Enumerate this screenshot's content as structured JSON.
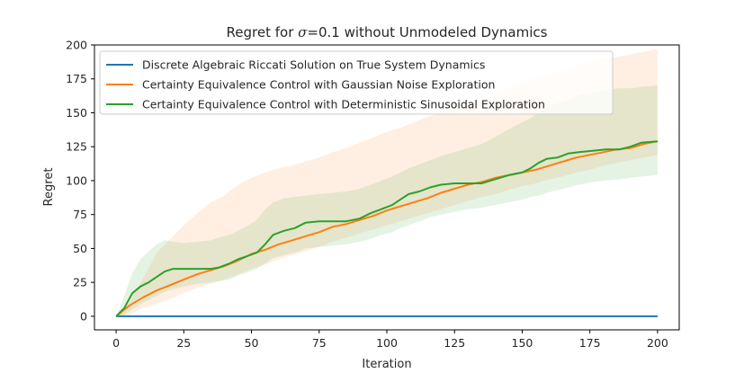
{
  "chart_data": {
    "type": "line",
    "title": "Regret for σ=0.1 without Unmodeled Dynamics",
    "title_prefix": "Regret for ",
    "title_sigma": "σ",
    "title_suffix": "=0.1 without Unmodeled Dynamics",
    "xlabel": "Iteration",
    "ylabel": "Regret",
    "xlim": [
      -8,
      208
    ],
    "ylim": [
      -10,
      200
    ],
    "xticks": [
      0,
      25,
      50,
      75,
      100,
      125,
      150,
      175,
      200
    ],
    "yticks": [
      0,
      25,
      50,
      75,
      100,
      125,
      150,
      175,
      200
    ],
    "grid": false,
    "legend_position": "top-left",
    "series": [
      {
        "name": "Discrete Algebraic Riccati Solution on True System Dynamics",
        "color": "#1f77b4",
        "x": [
          0,
          200
        ],
        "y": [
          0,
          0
        ]
      },
      {
        "name": "Certainty Equivalence Control with Gaussian Noise Exploration",
        "color": "#ff7f0e",
        "x": [
          0,
          5,
          10,
          15,
          20,
          25,
          30,
          35,
          40,
          45,
          50,
          55,
          60,
          65,
          70,
          75,
          80,
          85,
          90,
          95,
          100,
          105,
          110,
          115,
          120,
          125,
          130,
          135,
          140,
          145,
          150,
          155,
          160,
          165,
          170,
          175,
          180,
          185,
          190,
          195,
          200
        ],
        "y": [
          0,
          8,
          14,
          19,
          23,
          27,
          31,
          34,
          37,
          41,
          46,
          49,
          53,
          56,
          59,
          62,
          66,
          68,
          71,
          74,
          78,
          81,
          84,
          87,
          91,
          94,
          97,
          99,
          102,
          104,
          106,
          108,
          111,
          114,
          117,
          119,
          121,
          123,
          124,
          127,
          129
        ],
        "band_upper": [
          0,
          10,
          28,
          47,
          57,
          67,
          76,
          84,
          89,
          97,
          102,
          106,
          109,
          111,
          114,
          117,
          121,
          124,
          128,
          132,
          136,
          139,
          143,
          147,
          150,
          154,
          157,
          160,
          164,
          168,
          172,
          176,
          178,
          181,
          184,
          187,
          190,
          191,
          193,
          195,
          197
        ],
        "band_lower": [
          0,
          1,
          6,
          9,
          13,
          17,
          21,
          24,
          27,
          31,
          35,
          38,
          42,
          45,
          48,
          51,
          55,
          58,
          61,
          64,
          67,
          70,
          73,
          76,
          79,
          82,
          85,
          88,
          90,
          93,
          96,
          98,
          101,
          103,
          106,
          108,
          111,
          113,
          115,
          117,
          119
        ]
      },
      {
        "name": "Certainty Equivalence Control with Deterministic Sinusoidal Exploration",
        "color": "#2ca02c",
        "x": [
          0,
          3,
          6,
          9,
          12,
          15,
          18,
          21,
          25,
          30,
          35,
          38,
          42,
          45,
          48,
          52,
          55,
          58,
          62,
          66,
          70,
          75,
          80,
          85,
          90,
          94,
          98,
          102,
          105,
          108,
          112,
          116,
          120,
          125,
          130,
          135,
          140,
          145,
          150,
          153,
          156,
          159,
          163,
          167,
          171,
          176,
          181,
          186,
          190,
          194,
          200
        ],
        "y": [
          0,
          6,
          17,
          22,
          25,
          29,
          33,
          35,
          35,
          35,
          35,
          36,
          39,
          42,
          44,
          47,
          53,
          60,
          63,
          65,
          69,
          70,
          70,
          70,
          72,
          76,
          79,
          82,
          86,
          90,
          92,
          95,
          97,
          98,
          98,
          98,
          101,
          104,
          106,
          109,
          113,
          116,
          117,
          120,
          121,
          122,
          123,
          123,
          125,
          128,
          129
        ],
        "band_upper": [
          0,
          15,
          32,
          42,
          48,
          53,
          56,
          55,
          54,
          55,
          56,
          58,
          60,
          63,
          66,
          71,
          79,
          84,
          87,
          88,
          89,
          90,
          91,
          92,
          94,
          97,
          100,
          103,
          106,
          109,
          112,
          115,
          118,
          121,
          124,
          127,
          132,
          138,
          143,
          146,
          150,
          154,
          157,
          160,
          163,
          165,
          167,
          168,
          168,
          169,
          170
        ],
        "band_lower": [
          0,
          1,
          5,
          9,
          12,
          15,
          18,
          20,
          22,
          24,
          25,
          26,
          27,
          30,
          32,
          35,
          39,
          43,
          45,
          47,
          50,
          51,
          52,
          53,
          55,
          57,
          60,
          62,
          65,
          67,
          70,
          73,
          75,
          77,
          79,
          80,
          82,
          84,
          86,
          88,
          89,
          91,
          93,
          95,
          97,
          99,
          100,
          101,
          102,
          103,
          104
        ]
      }
    ]
  }
}
